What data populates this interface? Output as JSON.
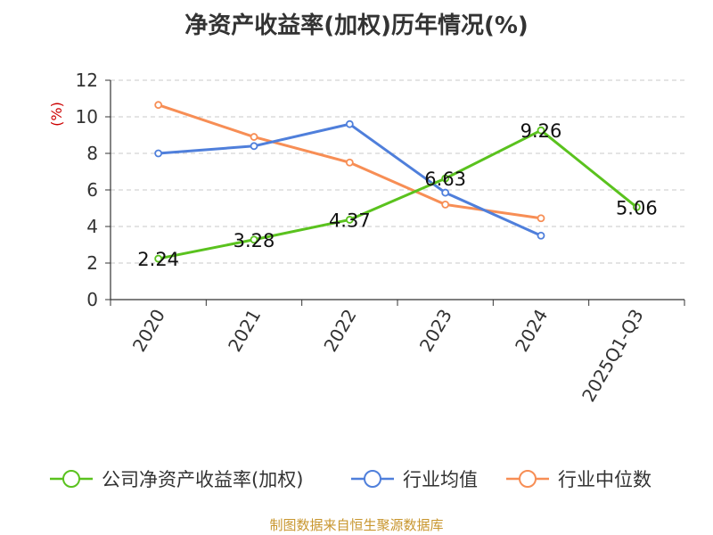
{
  "chart_data": {
    "type": "line",
    "title": "净资产收益率(加权)历年情况(%)",
    "ylabel": "(%)",
    "xlabel": "",
    "categories": [
      "2020",
      "2021",
      "2022",
      "2023",
      "2024",
      "2025Q1-Q3"
    ],
    "ylim": [
      0,
      12
    ],
    "yticks": [
      0,
      2,
      4,
      6,
      8,
      10,
      12
    ],
    "grid": true,
    "legend_position": "bottom",
    "series": [
      {
        "name": "公司净资产收益率(加权)",
        "color": "#5ac21e",
        "values": [
          2.24,
          3.28,
          4.37,
          6.63,
          9.26,
          5.06
        ],
        "labels": [
          "2.24",
          "3.28",
          "4.37",
          "6.63",
          "9.26",
          "5.06"
        ]
      },
      {
        "name": "行业均值",
        "color": "#4f7fdb",
        "values": [
          8.0,
          8.4,
          9.6,
          5.85,
          3.5,
          null
        ]
      },
      {
        "name": "行业中位数",
        "color": "#f78e55",
        "values": [
          10.65,
          8.9,
          7.5,
          5.2,
          4.45,
          null
        ]
      }
    ]
  },
  "footer": {
    "text": "制图数据来自恒生聚源数据库",
    "color": "#c8962e"
  },
  "axis": {
    "ylabel_color": "#cc0000"
  }
}
